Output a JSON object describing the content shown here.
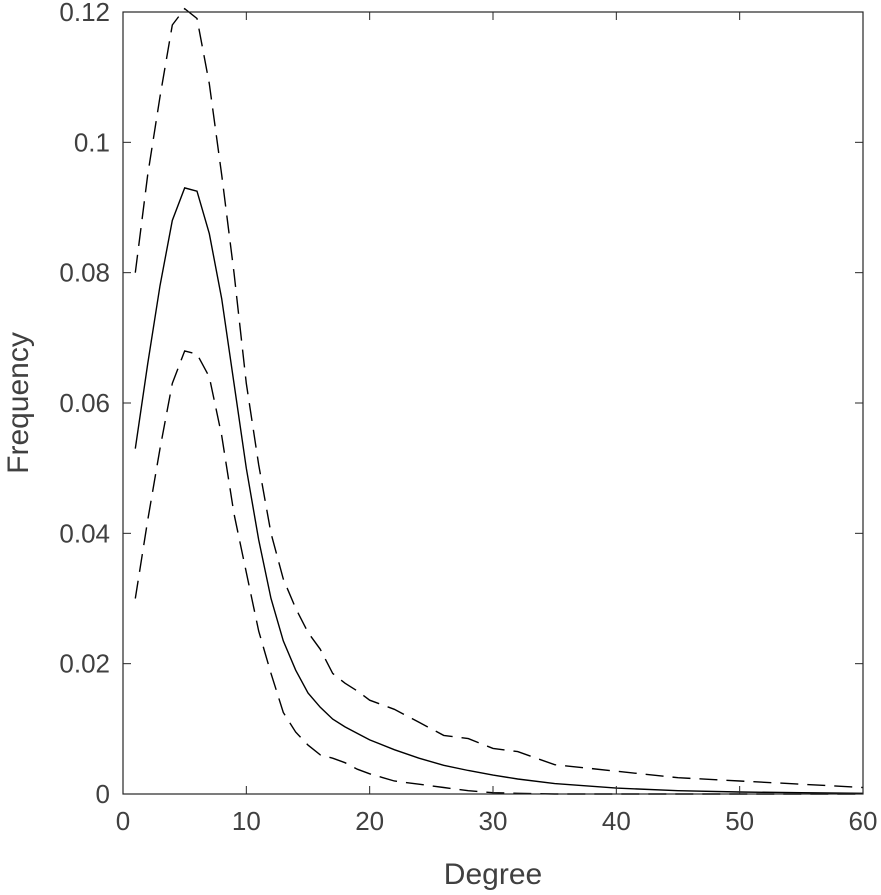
{
  "chart_data": {
    "type": "line",
    "title": "",
    "xlabel": "Degree",
    "ylabel": "Frequency",
    "xlim": [
      0,
      60
    ],
    "ylim": [
      0,
      0.12
    ],
    "xticks": [
      0,
      10,
      20,
      30,
      40,
      50,
      60
    ],
    "xtick_labels": [
      "0",
      "10",
      "20",
      "30",
      "40",
      "50",
      "60"
    ],
    "yticks": [
      0,
      0.02,
      0.04,
      0.06,
      0.08,
      0.1,
      0.12
    ],
    "ytick_labels": [
      "0",
      "0.02",
      "0.04",
      "0.06",
      "0.08",
      "0.1",
      "0.12"
    ],
    "grid": false,
    "legend": "none",
    "line_color": "#000000",
    "series": [
      {
        "style": "solid",
        "x": [
          1,
          2,
          3,
          4,
          5,
          6,
          7,
          8,
          9,
          10,
          11,
          12,
          13,
          14,
          15,
          16,
          17,
          18,
          19,
          20,
          22,
          24,
          26,
          28,
          30,
          32,
          35,
          40,
          45,
          50,
          55,
          60
        ],
        "y": [
          0.053,
          0.066,
          0.078,
          0.088,
          0.093,
          0.0925,
          0.086,
          0.076,
          0.063,
          0.05,
          0.039,
          0.03,
          0.0235,
          0.019,
          0.0155,
          0.0133,
          0.0115,
          0.0103,
          0.0093,
          0.0083,
          0.0068,
          0.0055,
          0.0044,
          0.0036,
          0.0029,
          0.0023,
          0.0016,
          0.0009,
          0.0005,
          0.0003,
          0.0002,
          0.0001
        ]
      },
      {
        "style": "dashed",
        "x": [
          1,
          2,
          3,
          4,
          5,
          6,
          7,
          8,
          9,
          10,
          11,
          12,
          13,
          14,
          15,
          16,
          17,
          18,
          19,
          20,
          22,
          24,
          26,
          28,
          30,
          32,
          35,
          40,
          45,
          50,
          55,
          60
        ],
        "y": [
          0.08,
          0.095,
          0.107,
          0.118,
          0.1205,
          0.119,
          0.109,
          0.095,
          0.08,
          0.063,
          0.0505,
          0.04,
          0.033,
          0.0285,
          0.0248,
          0.0222,
          0.0185,
          0.017,
          0.0158,
          0.0144,
          0.013,
          0.011,
          0.009,
          0.0085,
          0.007,
          0.0065,
          0.0045,
          0.0035,
          0.0025,
          0.002,
          0.0015,
          0.001
        ]
      },
      {
        "style": "dashed",
        "x": [
          1,
          2,
          3,
          4,
          5,
          6,
          7,
          8,
          9,
          10,
          11,
          12,
          13,
          14,
          15,
          16,
          17,
          18,
          19,
          20,
          22,
          24,
          26,
          28,
          30,
          32,
          35,
          40,
          45,
          50,
          55,
          60
        ],
        "y": [
          0.03,
          0.042,
          0.053,
          0.063,
          0.068,
          0.0675,
          0.064,
          0.055,
          0.043,
          0.034,
          0.025,
          0.0185,
          0.0125,
          0.0095,
          0.0075,
          0.006,
          0.0055,
          0.0048,
          0.0038,
          0.0031,
          0.002,
          0.0015,
          0.001,
          0.0005,
          0.0002,
          0.0001,
          0,
          0,
          0,
          0,
          0,
          0
        ]
      }
    ]
  }
}
